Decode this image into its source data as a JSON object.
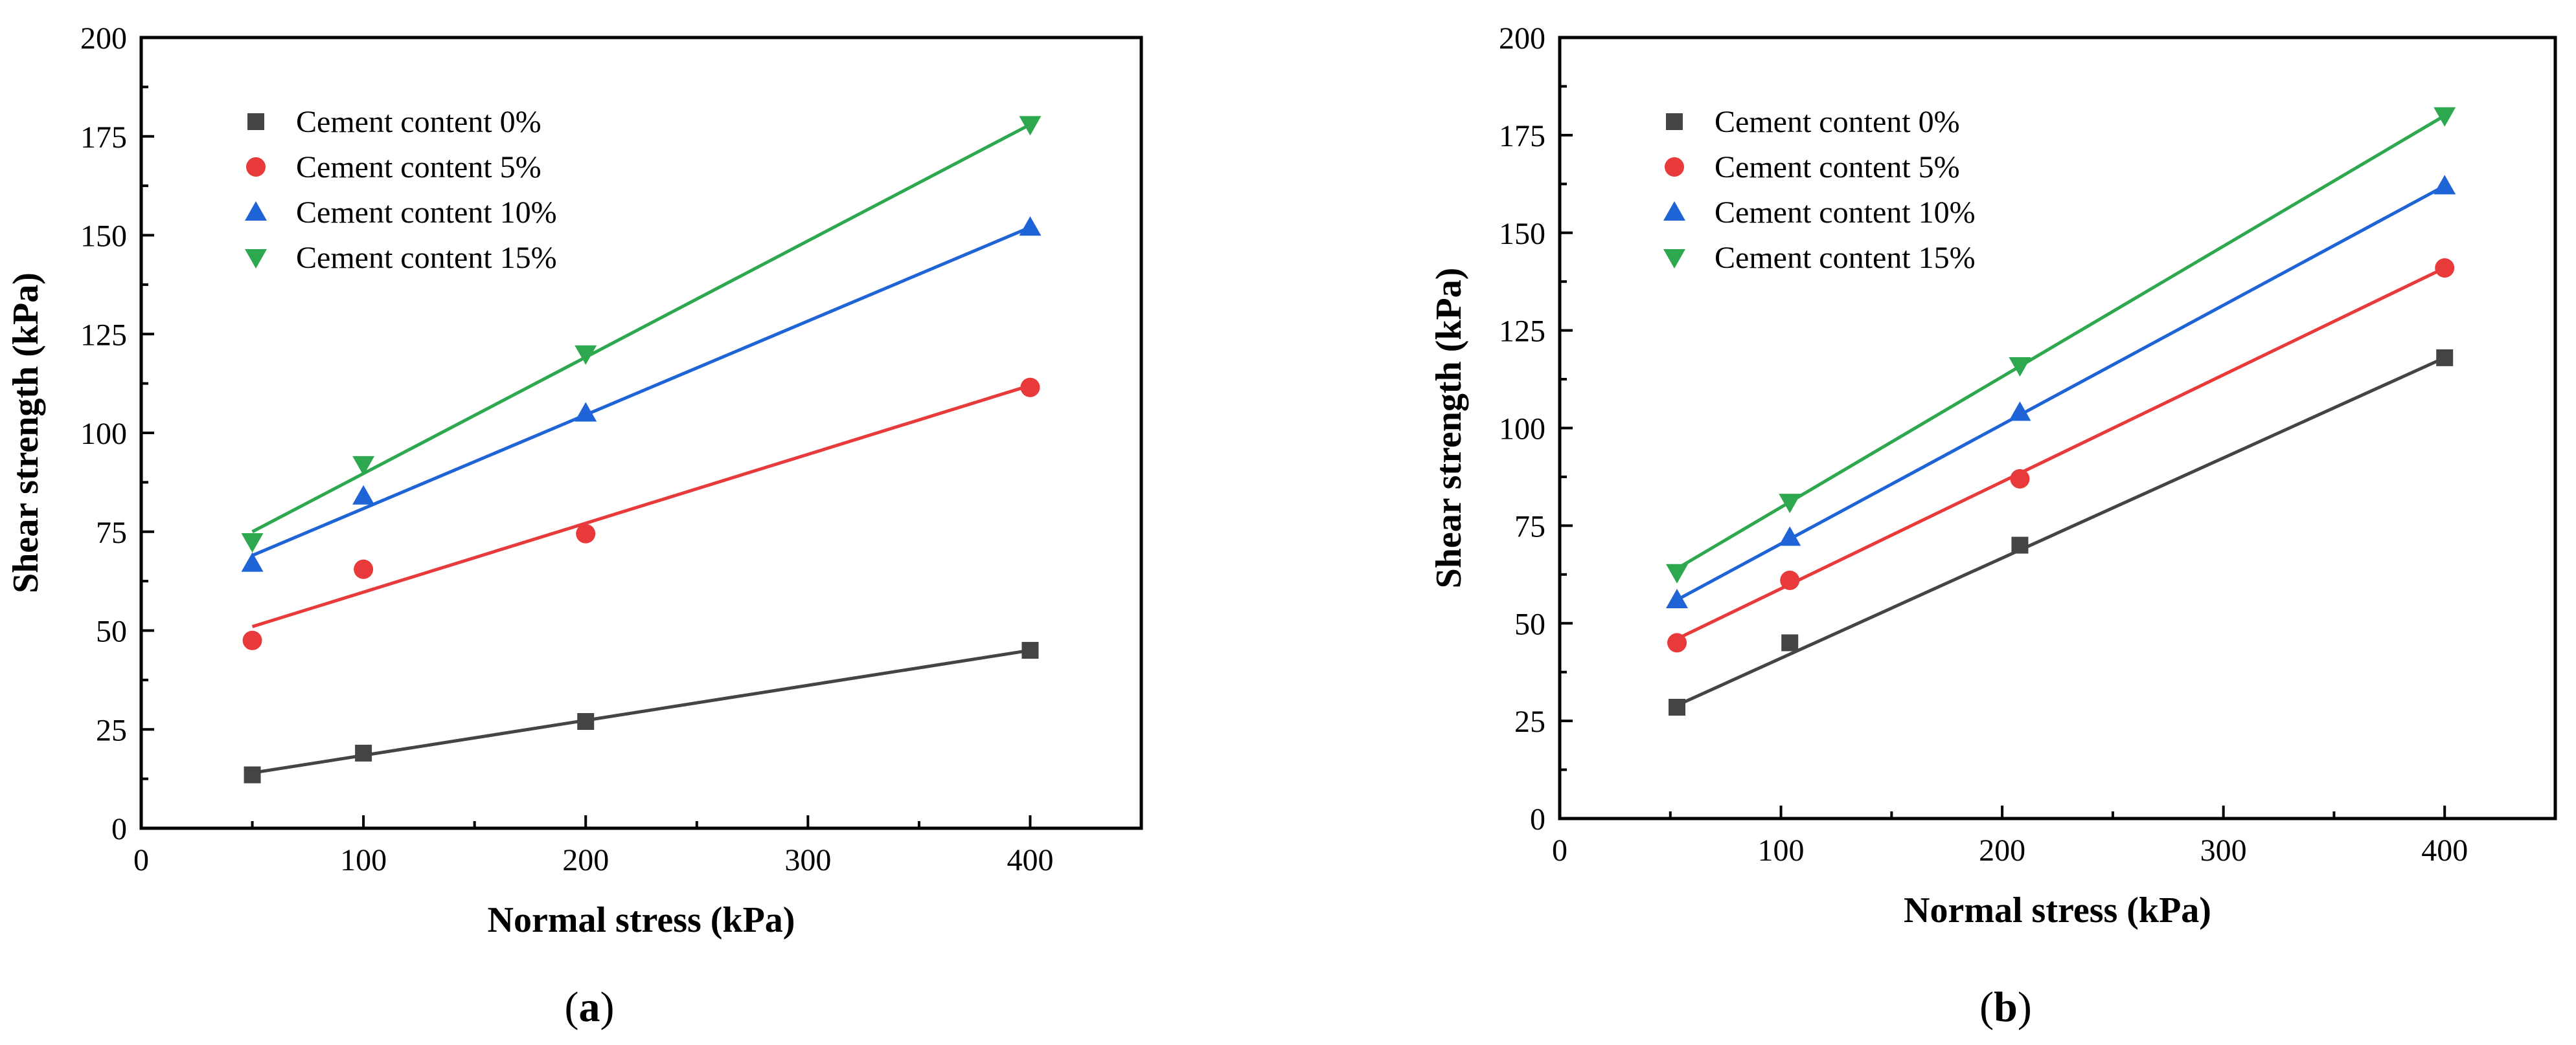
{
  "chart_data": [
    {
      "type": "scatter",
      "panel_label": "a",
      "xlabel": "Normal stress (kPa)",
      "ylabel": "Shear strength (kPa)",
      "xlim": [
        0,
        450
      ],
      "ylim": [
        0,
        200
      ],
      "x_ticks": [
        0,
        100,
        200,
        300,
        400
      ],
      "y_ticks": [
        0,
        25,
        50,
        75,
        100,
        125,
        150,
        175,
        200
      ],
      "legend_position": "top-left",
      "series": [
        {
          "name": "Cement content 0%",
          "marker": "square",
          "color": "#444444",
          "x": [
            50,
            100,
            200,
            400
          ],
          "y": [
            13.5,
            19,
            27,
            45
          ],
          "fit": [
            [
              50,
              14
            ],
            [
              400,
              45
            ]
          ]
        },
        {
          "name": "Cement content 5%",
          "marker": "circle",
          "color": "#e83a3a",
          "x": [
            50,
            100,
            200,
            400
          ],
          "y": [
            47.5,
            65.5,
            74.5,
            111.5
          ],
          "fit": [
            [
              50,
              51
            ],
            [
              400,
              112
            ]
          ]
        },
        {
          "name": "Cement content 10%",
          "marker": "triangle-up",
          "color": "#1f64d6",
          "x": [
            50,
            100,
            200,
            400
          ],
          "y": [
            67,
            84,
            105,
            152
          ],
          "fit": [
            [
              50,
              69
            ],
            [
              400,
              152
            ]
          ]
        },
        {
          "name": "Cement content 15%",
          "marker": "triangle-down",
          "color": "#2ea84f",
          "x": [
            50,
            100,
            200,
            400
          ],
          "y": [
            72.5,
            92,
            120,
            178
          ],
          "fit": [
            [
              50,
              75
            ],
            [
              400,
              178
            ]
          ]
        }
      ]
    },
    {
      "type": "scatter",
      "panel_label": "b",
      "xlabel": "Normal stress (kPa)",
      "ylabel": "Shear strength (kPa)",
      "xlim": [
        0,
        450
      ],
      "ylim": [
        0,
        200
      ],
      "x_ticks": [
        0,
        100,
        200,
        300,
        400
      ],
      "y_ticks": [
        0,
        25,
        50,
        75,
        100,
        125,
        150,
        175,
        200
      ],
      "legend_position": "top-left",
      "series": [
        {
          "name": "Cement content 0%",
          "marker": "square",
          "color": "#444444",
          "x": [
            53,
            104,
            208,
            400
          ],
          "y": [
            28.5,
            45,
            70,
            118
          ],
          "fit": [
            [
              53,
              29
            ],
            [
              400,
              118
            ]
          ]
        },
        {
          "name": "Cement content 5%",
          "marker": "circle",
          "color": "#e83a3a",
          "x": [
            53,
            104,
            208,
            400
          ],
          "y": [
            45,
            61,
            87,
            141
          ],
          "fit": [
            [
              53,
              46
            ],
            [
              400,
              141
            ]
          ]
        },
        {
          "name": "Cement content 10%",
          "marker": "triangle-up",
          "color": "#1f64d6",
          "x": [
            53,
            104,
            208,
            400
          ],
          "y": [
            56,
            72,
            104,
            162
          ],
          "fit": [
            [
              53,
              56
            ],
            [
              400,
              162
            ]
          ]
        },
        {
          "name": "Cement content 15%",
          "marker": "triangle-down",
          "color": "#2ea84f",
          "x": [
            53,
            104,
            208,
            400
          ],
          "y": [
            63,
            81,
            116,
            180
          ],
          "fit": [
            [
              53,
              64
            ],
            [
              400,
              180
            ]
          ]
        }
      ]
    }
  ]
}
